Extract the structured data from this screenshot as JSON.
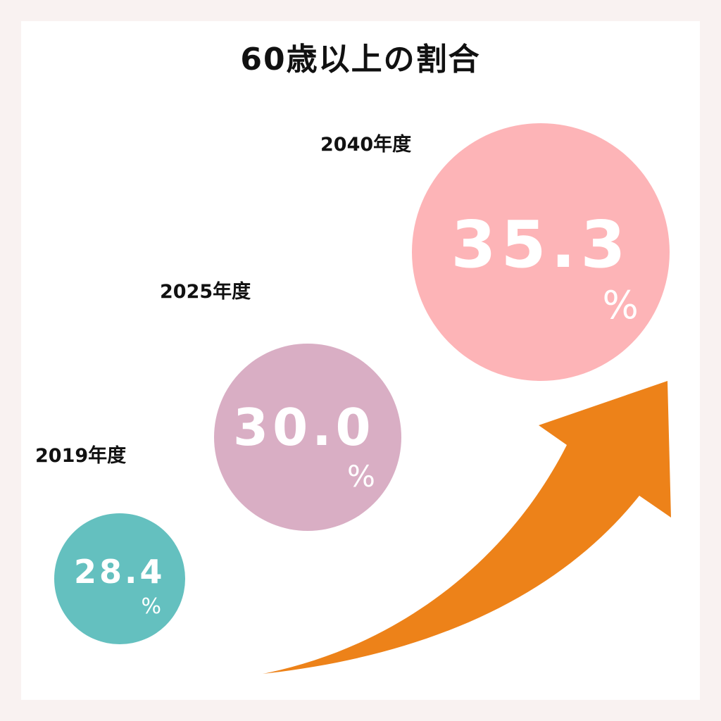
{
  "chart_data": {
    "type": "bubble",
    "title": "60歳以上の割合",
    "unit": "%",
    "categories": [
      "2019年度",
      "2025年度",
      "2040年度"
    ],
    "values": [
      28.4,
      30.0,
      35.3
    ],
    "value_labels": [
      "28.4",
      "30.0",
      "35.3"
    ],
    "trend_arrow": "up-right"
  },
  "colors": {
    "background": "#f9f2f1",
    "card": "#ffffff",
    "bubbles": [
      "#64c0bf",
      "#d9aec4",
      "#fdb4b7"
    ],
    "arrow": "#ed8219",
    "text": "#111111",
    "value_text": "#ffffff"
  }
}
